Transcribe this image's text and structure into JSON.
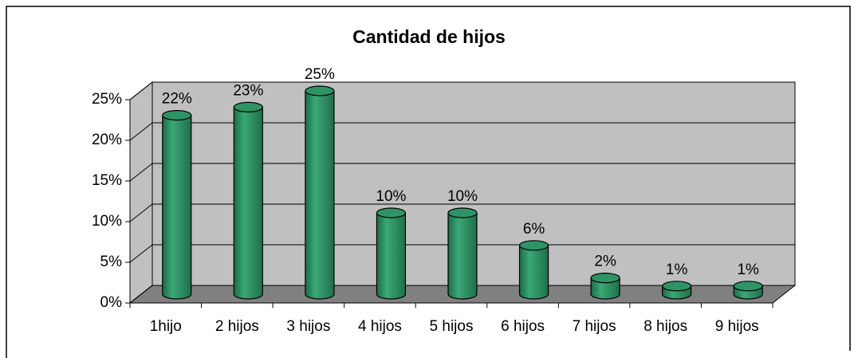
{
  "chart_data": {
    "type": "bar",
    "title": "Cantidad de hijos",
    "categories": [
      "1hijo",
      "2 hijos",
      "3 hijos",
      "4 hijos",
      "5 hijos",
      "6 hijos",
      "7 hijos",
      "8 hijos",
      "9 hijos"
    ],
    "values": [
      22,
      23,
      25,
      10,
      10,
      6,
      2,
      1,
      1
    ],
    "value_labels": [
      "22%",
      "23%",
      "25%",
      "10%",
      "10%",
      "6%",
      "2%",
      "1%",
      "1%"
    ],
    "color": "#2e9465",
    "ylim": [
      0,
      25
    ],
    "yticks": [
      {
        "value": 0,
        "label": "0%"
      },
      {
        "value": 5,
        "label": "5%"
      },
      {
        "value": 10,
        "label": "10%"
      },
      {
        "value": 15,
        "label": "15%"
      },
      {
        "value": 20,
        "label": "20%"
      },
      {
        "value": 25,
        "label": "25%"
      }
    ],
    "grid": true
  }
}
